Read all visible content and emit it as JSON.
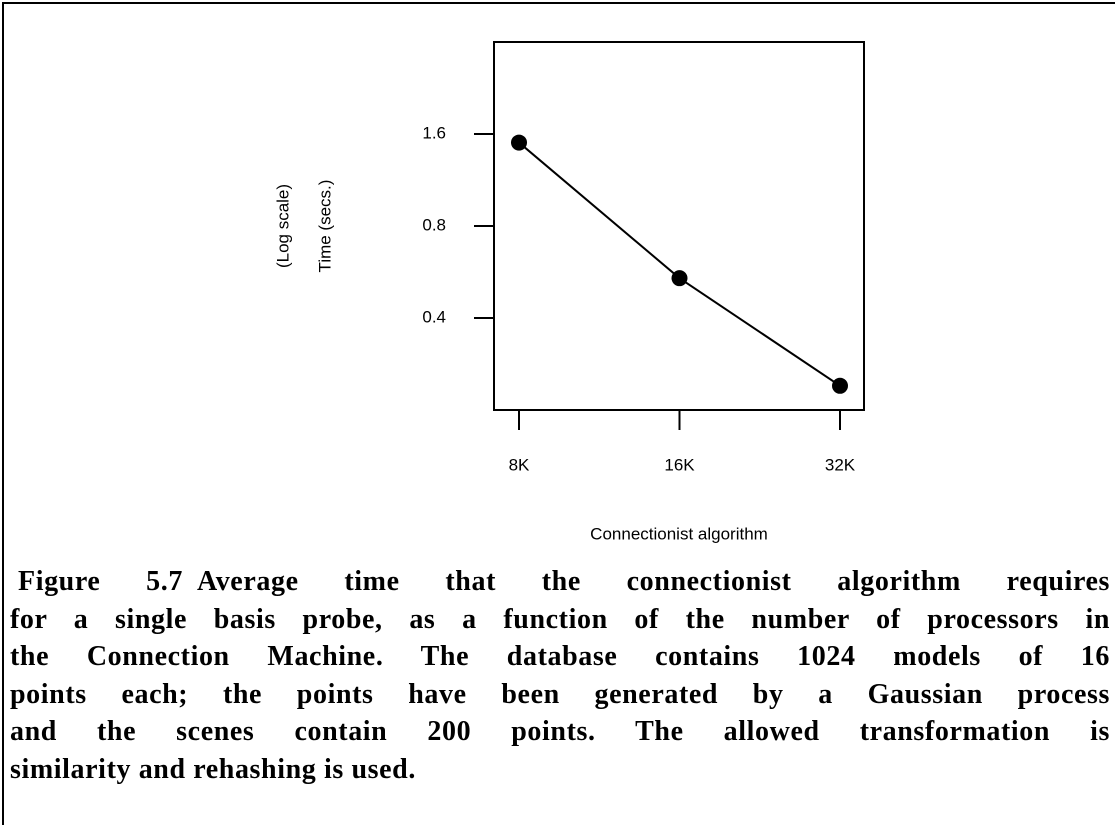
{
  "chart_data": {
    "type": "line",
    "categories": [
      "8K",
      "16K",
      "32K"
    ],
    "values": [
      1.5,
      0.54,
      0.24
    ],
    "color": "#000000",
    "ylim": [
      0.2,
      3.2
    ],
    "yticks": [
      0.4,
      0.8,
      1.6
    ],
    "ylog": true,
    "xlabel": "Connectionist algorithm",
    "ylabel": "Time (secs.)",
    "ylabel_note": "(Log scale)"
  },
  "caption": {
    "label": "Figure 5.7",
    "lines": [
      "Average time that the connectionist algorithm requires",
      "for a single basis probe, as a function of the number of processors in",
      "the Connection Machine. The database contains 1024 models of 16",
      "points each; the points have been generated by a Gaussian process",
      "and the scenes contain 200 points. The allowed transformation is",
      "similarity and rehashing is used."
    ]
  }
}
